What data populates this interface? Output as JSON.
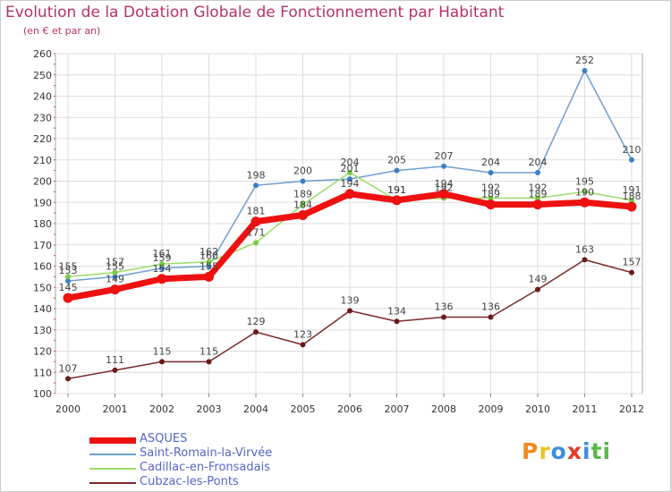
{
  "title": "Evolution de la Dotation Globale de Fonctionnement par Habitant",
  "subtitle": "(en € et par an)",
  "logo": "Proxiti",
  "colors": {
    "title": "#b5326a",
    "legend_text": "#5566cc",
    "axis_text": "#333333",
    "grid": "#dddddd",
    "frame": "#aaaaaa",
    "tick_marks": "#e34242"
  },
  "chart_data": {
    "type": "line",
    "title": "Evolution de la Dotation Globale de Fonctionnement par Habitant",
    "subtitle": "(en € et par an)",
    "xlabel": "",
    "ylabel": "",
    "x": [
      "2000",
      "2001",
      "2002",
      "2003",
      "2004",
      "2005",
      "2006",
      "2007",
      "2008",
      "2009",
      "2010",
      "2011",
      "2012"
    ],
    "ylim": [
      100,
      260
    ],
    "yticks": [
      100,
      110,
      120,
      130,
      140,
      150,
      160,
      170,
      180,
      190,
      200,
      210,
      220,
      230,
      240,
      250,
      260
    ],
    "grid": true,
    "legend_position": "bottom-left",
    "series": [
      {
        "name": "Saint-Romain-la-Virvée",
        "color": "#6f9fd0",
        "marker_color": "#3d7fc4",
        "line_width": 1.5,
        "values": [
          153,
          155,
          159,
          160,
          198,
          200,
          201,
          205,
          207,
          204,
          204,
          252,
          210
        ],
        "labels": [
          "153",
          "155",
          "159",
          "160",
          "198",
          "200",
          "201",
          "205",
          "207",
          "204",
          "204",
          "252",
          "210"
        ]
      },
      {
        "name": "Cadillac-en-Fronsadais",
        "color": "#99dd66",
        "marker_color": "#77cc44",
        "line_width": 1.5,
        "values": [
          155,
          157,
          161,
          162,
          171,
          189,
          204,
          191,
          192,
          192,
          192,
          195,
          191
        ],
        "labels": [
          "155",
          "157",
          "161",
          "162",
          "171",
          "189",
          "204",
          "191",
          "192",
          "192",
          "192",
          "195",
          "191"
        ]
      },
      {
        "name": "Cubzac-les-Ponts",
        "color": "#7a2a2a",
        "marker_color": "#6a1a1a",
        "line_width": 1.5,
        "values": [
          107,
          111,
          115,
          115,
          129,
          123,
          139,
          134,
          136,
          136,
          149,
          163,
          157
        ],
        "labels": [
          "107",
          "111",
          "115",
          "115",
          "129",
          "123",
          "139",
          "134",
          "136",
          "136",
          "149",
          "163",
          "157"
        ]
      },
      {
        "name": "ASQUES",
        "color": "#ee1111",
        "marker_color": "#ee1111",
        "line_width": 7,
        "values": [
          145,
          149,
          154,
          155,
          181,
          184,
          194,
          191,
          194,
          189,
          189,
          190,
          188
        ],
        "labels": [
          "145",
          "149",
          "154",
          "155",
          "181",
          "184",
          "194",
          "191",
          "194",
          "189",
          "189",
          "190",
          "188"
        ]
      }
    ],
    "legend": [
      "ASQUES",
      "Saint-Romain-la-Virvée",
      "Cadillac-en-Fronsadais",
      "Cubzac-les-Ponts"
    ]
  }
}
